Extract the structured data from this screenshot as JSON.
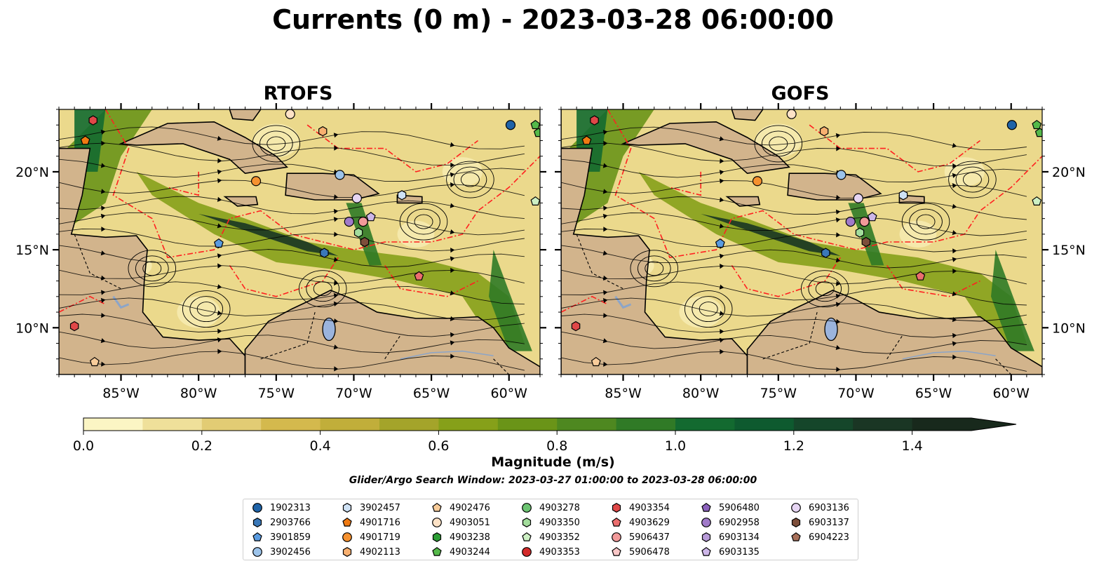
{
  "title": "Currents (0 m) - 2023-03-28 06:00:00",
  "panels": [
    {
      "title": "RTOFS"
    },
    {
      "title": "GOFS"
    }
  ],
  "axes": {
    "lon_ticks": [
      "85°W",
      "80°W",
      "75°W",
      "70°W",
      "65°W",
      "60°W"
    ],
    "lat_ticks": [
      "20°N",
      "15°N",
      "10°N"
    ]
  },
  "colorbar": {
    "label": "Magnitude (m/s)",
    "ticks": [
      "0.0",
      "0.2",
      "0.4",
      "0.6",
      "0.8",
      "1.0",
      "1.2",
      "1.4"
    ],
    "colors": [
      "#fbf5c4",
      "#efe09a",
      "#e2cc74",
      "#d4b94d",
      "#c1ae3a",
      "#a4a42a",
      "#86a019",
      "#6a9418",
      "#4e8820",
      "#307a26",
      "#136a30",
      "#0e5a2f",
      "#15462a",
      "#1a3624",
      "#18291c"
    ]
  },
  "search_window": "Glider/Argo Search Window: 2023-03-27 01:00:00 to 2023-03-28 06:00:00",
  "legend": [
    {
      "id": "1902313",
      "shape": "circle",
      "color": "#1f63a8"
    },
    {
      "id": "2903766",
      "shape": "hexagon",
      "color": "#3a78b8"
    },
    {
      "id": "3901859",
      "shape": "pentagon",
      "color": "#5a9be0"
    },
    {
      "id": "3902456",
      "shape": "circle",
      "color": "#9cc3ea"
    },
    {
      "id": "3902457",
      "shape": "hexagon",
      "color": "#cfe2f5"
    },
    {
      "id": "4901716",
      "shape": "pentagon",
      "color": "#f07a12"
    },
    {
      "id": "4901719",
      "shape": "circle",
      "color": "#f5912f"
    },
    {
      "id": "4902113",
      "shape": "hexagon",
      "color": "#f8b070"
    },
    {
      "id": "4902476",
      "shape": "pentagon",
      "color": "#f8cc9a"
    },
    {
      "id": "4903051",
      "shape": "circle",
      "color": "#fde2c6"
    },
    {
      "id": "4903238",
      "shape": "hexagon",
      "color": "#2c9e35"
    },
    {
      "id": "4903244",
      "shape": "pentagon",
      "color": "#55b94a"
    },
    {
      "id": "4903278",
      "shape": "circle",
      "color": "#6cc472"
    },
    {
      "id": "4903350",
      "shape": "hexagon",
      "color": "#a3dd9c"
    },
    {
      "id": "4903352",
      "shape": "pentagon",
      "color": "#cdf0c4"
    },
    {
      "id": "4903353",
      "shape": "circle",
      "color": "#d32a2a"
    },
    {
      "id": "4903354",
      "shape": "hexagon",
      "color": "#e04848"
    },
    {
      "id": "4903629",
      "shape": "pentagon",
      "color": "#eb6e6e"
    },
    {
      "id": "5906437",
      "shape": "circle",
      "color": "#f29a9a"
    },
    {
      "id": "5906478",
      "shape": "pentagon",
      "color": "#f9c7c7"
    },
    {
      "id": "5906480",
      "shape": "pentagon",
      "color": "#8c62bd"
    },
    {
      "id": "6902958",
      "shape": "circle",
      "color": "#a07ac9"
    },
    {
      "id": "6903134",
      "shape": "hexagon",
      "color": "#b79ad8"
    },
    {
      "id": "6903135",
      "shape": "pentagon",
      "color": "#cdb6e8"
    },
    {
      "id": "6903136",
      "shape": "circle",
      "color": "#e6d5f3"
    },
    {
      "id": "6903137",
      "shape": "hexagon",
      "color": "#7d4e3a"
    },
    {
      "id": "6904223",
      "shape": "pentagon",
      "color": "#a8705a"
    }
  ],
  "map_colors": {
    "land": "#d2b48c",
    "lake": "#9bb4dd",
    "boundary": "#ff2020"
  }
}
